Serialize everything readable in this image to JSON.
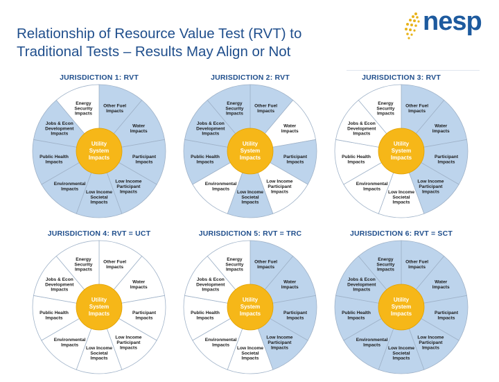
{
  "title": "Relationship of Resource Value Test (RVT) to\nTraditional Tests – Results May Align or Not",
  "logo": {
    "text": "nesp"
  },
  "colors": {
    "title": "#1f4e8c",
    "ring_blue": "#bdd4ec",
    "ring_white": "#ffffff",
    "center": "#f6b718",
    "center_text": "#ffffff",
    "label": "#1a1a1a",
    "outline": "#9fb2c8"
  },
  "center_label": [
    "Utility",
    "System",
    "Impacts"
  ],
  "segments": [
    {
      "id": "other-fuel",
      "label": [
        "Other Fuel",
        "Impacts"
      ]
    },
    {
      "id": "water",
      "label": [
        "Water",
        "Impacts"
      ]
    },
    {
      "id": "participant",
      "label": [
        "Participant",
        "Impacts"
      ]
    },
    {
      "id": "low-income-participant",
      "label": [
        "Low Income",
        "Participant",
        "Impacts"
      ]
    },
    {
      "id": "low-income-societal",
      "label": [
        "Low Income",
        "Societal",
        "Impacts"
      ]
    },
    {
      "id": "environmental",
      "label": [
        "Environmental",
        "Impacts"
      ]
    },
    {
      "id": "public-health",
      "label": [
        "Public Health",
        "Impacts"
      ]
    },
    {
      "id": "jobs-econ",
      "label": [
        "Jobs & Econ",
        "Development",
        "Impacts"
      ]
    },
    {
      "id": "energy-security",
      "label": [
        "Energy",
        "Security",
        "Impacts"
      ]
    }
  ],
  "panels": [
    {
      "title": "JURISDICTION 1: RVT",
      "included": [
        true,
        true,
        true,
        true,
        true,
        true,
        true,
        true,
        false
      ]
    },
    {
      "title": "JURISDICTION 2: RVT",
      "included": [
        true,
        false,
        true,
        false,
        true,
        false,
        true,
        true,
        true
      ]
    },
    {
      "title": "JURISDICTION 3: RVT",
      "included": [
        true,
        true,
        true,
        true,
        false,
        false,
        false,
        false,
        false
      ]
    },
    {
      "title": "JURISDICTION 4: RVT = UCT",
      "included": [
        false,
        false,
        false,
        false,
        false,
        false,
        false,
        false,
        false
      ]
    },
    {
      "title": "JURISDICTION 5: RVT = TRC",
      "included": [
        true,
        true,
        true,
        true,
        false,
        false,
        false,
        false,
        false
      ]
    },
    {
      "title": "JURISDICTION 6: RVT = SCT",
      "included": [
        true,
        true,
        true,
        true,
        true,
        true,
        true,
        true,
        true
      ]
    }
  ]
}
